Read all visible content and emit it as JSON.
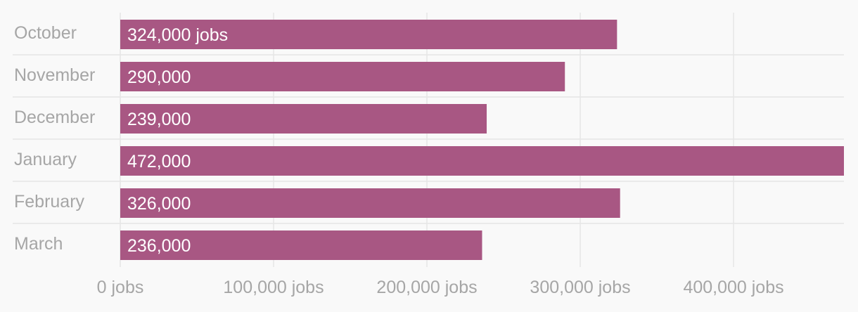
{
  "chart_data": {
    "type": "bar",
    "orientation": "horizontal",
    "categories": [
      "October",
      "November",
      "December",
      "January",
      "February",
      "March"
    ],
    "values": [
      324000,
      290000,
      239000,
      472000,
      326000,
      236000
    ],
    "data_labels": [
      "324,000 jobs",
      "290,000",
      "239,000",
      "472,000",
      "326,000",
      "236,000"
    ],
    "x_ticks": [
      0,
      100000,
      200000,
      300000,
      400000
    ],
    "x_tick_labels": [
      "0 jobs",
      "100,000 jobs",
      "200,000 jobs",
      "300,000 jobs",
      "400,000 jobs"
    ],
    "xlim": [
      0,
      472000
    ],
    "grid": true,
    "colors": {
      "bar": "#a85783",
      "grid": "#e6e6e6",
      "text": "#a6a6a6",
      "background": "#f9f9f9"
    }
  }
}
